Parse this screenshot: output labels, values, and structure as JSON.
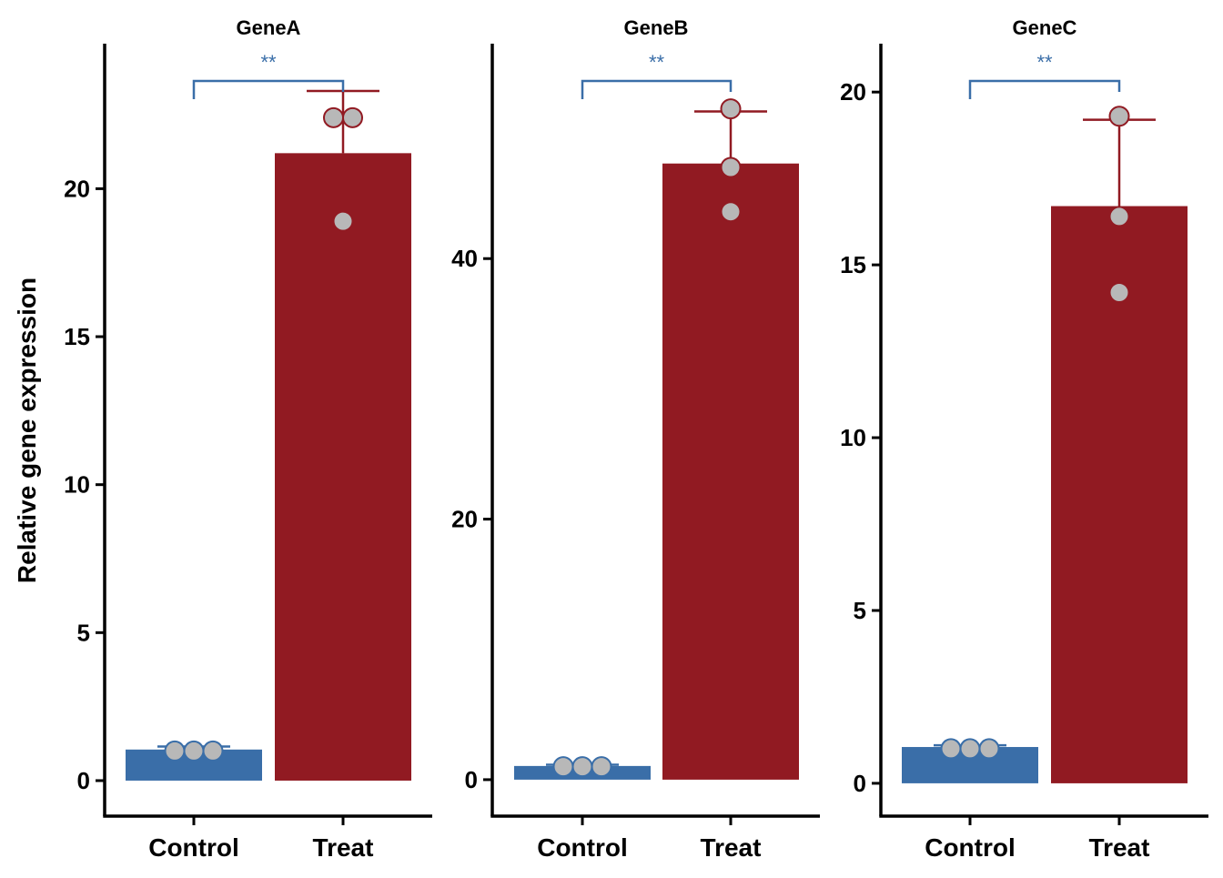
{
  "colors": {
    "control": "#3A6EA8",
    "treat": "#911A22",
    "point_fill": "#B8B8B8",
    "axis": "#000000"
  },
  "ylabel": "Relative gene expression",
  "chart_data": [
    {
      "type": "bar",
      "title": "GeneA",
      "categories": [
        "Control",
        "Treat"
      ],
      "values": [
        1.05,
        21.2
      ],
      "error_upper": [
        1.15,
        23.3
      ],
      "points": [
        [
          1.0,
          1.0,
          1.0
        ],
        [
          22.4,
          22.4,
          18.9
        ]
      ],
      "ylim": [
        -1.2,
        24.9
      ],
      "yticks": [
        0,
        5,
        10,
        15,
        20
      ],
      "significance": "**"
    },
    {
      "type": "bar",
      "title": "GeneB",
      "categories": [
        "Control",
        "Treat"
      ],
      "values": [
        1.05,
        47.3
      ],
      "error_upper": [
        1.15,
        51.3
      ],
      "points": [
        [
          1.0,
          1.0,
          1.0
        ],
        [
          51.5,
          47.0,
          43.6
        ]
      ],
      "ylim": [
        -2.8,
        56.5
      ],
      "yticks": [
        0,
        20,
        40
      ],
      "significance": "**"
    },
    {
      "type": "bar",
      "title": "GeneC",
      "categories": [
        "Control",
        "Treat"
      ],
      "values": [
        1.05,
        16.7
      ],
      "error_upper": [
        1.1,
        19.2
      ],
      "points": [
        [
          1.0,
          1.0,
          1.0
        ],
        [
          19.3,
          16.4,
          14.2
        ]
      ],
      "ylim": [
        -0.95,
        21.4
      ],
      "yticks": [
        0,
        5,
        10,
        15,
        20
      ],
      "significance": "**"
    }
  ]
}
